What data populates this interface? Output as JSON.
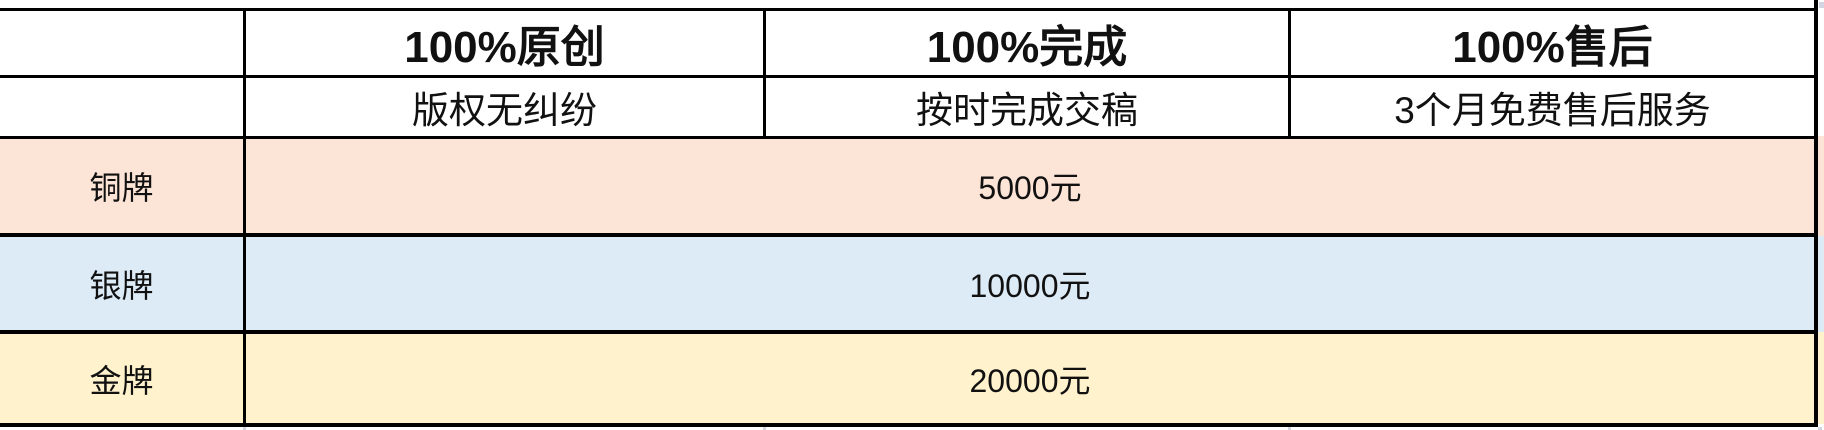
{
  "table": {
    "header_row": [
      "",
      "100%原创",
      "100%完成",
      "100%售后"
    ],
    "subheader_row": [
      "",
      "版权无纠纷",
      "按时完成交稿",
      "3个月免费售后服务"
    ],
    "tiers": [
      {
        "label": "铜牌",
        "price": "5000元",
        "row_color": "#fce4d6"
      },
      {
        "label": "银牌",
        "price": "10000元",
        "row_color": "#ddebf7"
      },
      {
        "label": "金牌",
        "price": "20000元",
        "row_color": "#fff2cc"
      }
    ],
    "colors": {
      "border": "#000000",
      "text": "#111111",
      "background": "#ffffff",
      "gridline_stub": "#d4d7e2"
    }
  }
}
